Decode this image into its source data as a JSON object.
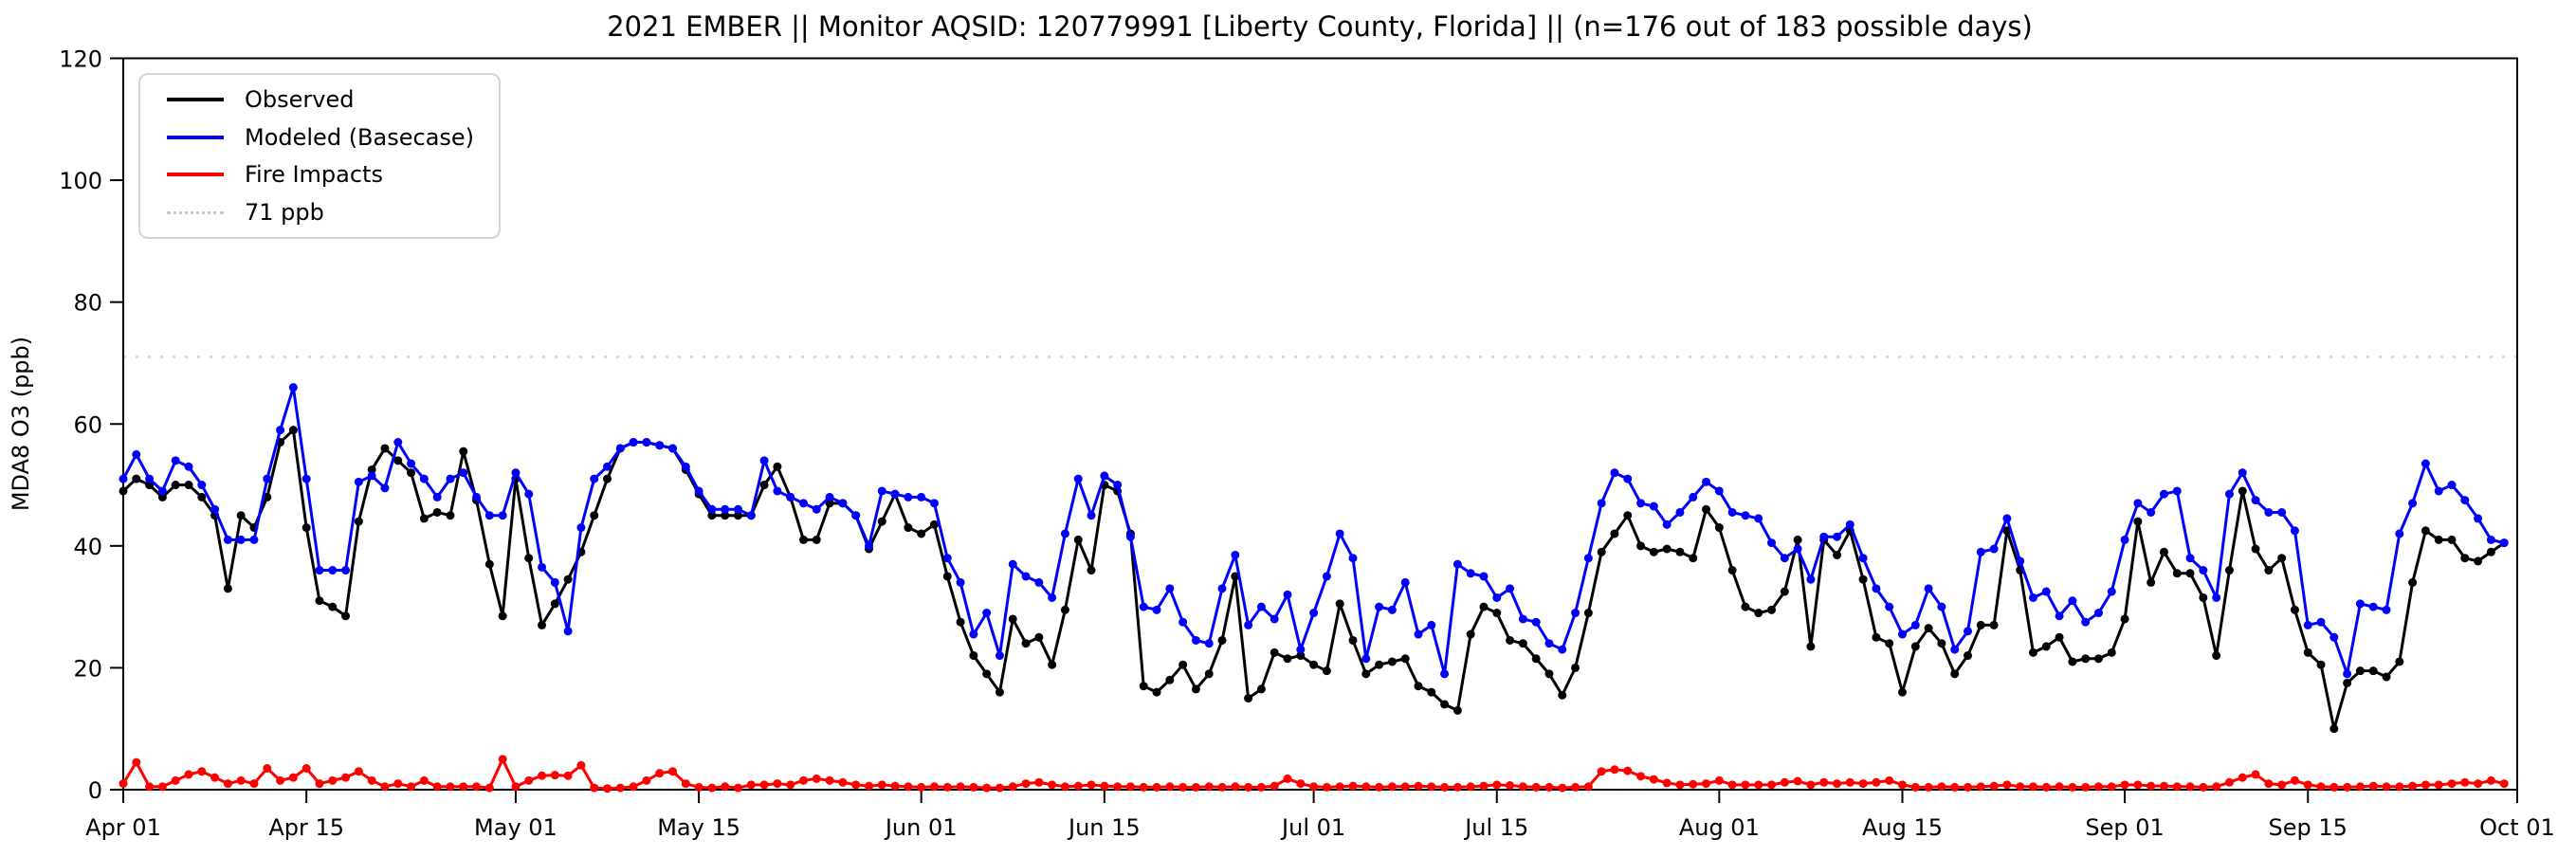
{
  "title": "2021 EMBER || Monitor AQSID: 120779991 [Liberty County, Florida] || (n=176 out of 183 possible days)",
  "legend": {
    "items": [
      {
        "label": "Observed",
        "color": "#000000",
        "style": "solid"
      },
      {
        "label": "Modeled (Basecase)",
        "color": "#0000ff",
        "style": "solid"
      },
      {
        "label": "Fire Impacts",
        "color": "#ff0000",
        "style": "solid"
      },
      {
        "label": "71 ppb",
        "color": "#d9d9d9",
        "style": "dotted"
      }
    ]
  },
  "chart_data": {
    "type": "line",
    "title": "2021 EMBER || Monitor AQSID: 120779991 [Liberty County, Florida] || (n=176 out of 183 possible days)",
    "xlabel": "",
    "ylabel": "MDA8 O3 (ppb)",
    "ylim": [
      0,
      120
    ],
    "y_ticks": [
      0,
      20,
      40,
      60,
      80,
      100,
      120
    ],
    "x_start": "Apr 01",
    "x_end": "Oct 01",
    "n_days": 183,
    "x_tick_days": [
      0,
      14,
      30,
      44,
      61,
      75,
      91,
      105,
      122,
      136,
      153,
      167,
      183
    ],
    "x_tick_labels": [
      "Apr 01",
      "Apr 15",
      "May 01",
      "May 15",
      "Jun 01",
      "Jun 15",
      "Jul 01",
      "Jul 15",
      "Aug 01",
      "Aug 15",
      "Sep 01",
      "Sep 15",
      "Oct 01"
    ],
    "grid": false,
    "legend_position": "upper left",
    "threshold": {
      "value": 71,
      "label": "71 ppb",
      "color": "#d9d9d9"
    },
    "series": [
      {
        "name": "Observed",
        "color": "#000000",
        "marker": "o",
        "values": [
          49,
          51,
          50,
          48,
          50,
          50,
          48,
          45,
          33,
          45,
          43,
          48,
          57,
          59,
          43,
          31,
          30,
          28.5,
          44,
          52.5,
          56,
          54,
          52,
          44.5,
          45.5,
          45,
          55.5,
          47.5,
          37,
          28.5,
          51,
          38,
          27,
          30.5,
          34.5,
          39,
          45,
          51,
          56,
          57,
          57,
          56.5,
          56,
          52.5,
          48.5,
          45,
          45,
          45,
          45,
          50,
          53,
          48,
          41,
          41,
          47,
          47,
          45,
          39.5,
          44,
          48.5,
          43,
          42,
          43.5,
          35,
          27.5,
          22,
          19,
          16,
          28,
          24,
          25,
          20.5,
          29.5,
          41,
          36,
          50,
          49,
          42,
          17,
          16,
          18,
          20.5,
          16.5,
          19,
          24.5,
          35,
          15,
          16.5,
          22.5,
          21.5,
          22,
          20.5,
          19.5,
          30.5,
          24.5,
          19,
          20.5,
          21,
          21.5,
          17,
          16,
          14,
          13,
          25.5,
          30,
          29,
          24.5,
          24,
          21.5,
          19,
          15.5,
          20,
          29,
          39,
          42,
          45,
          40,
          39,
          39.5,
          39,
          38,
          46,
          43,
          36,
          30,
          29,
          29.5,
          32.5,
          41,
          23.5,
          41,
          38.5,
          42.5,
          34.5,
          25,
          24,
          16,
          23.5,
          26.5,
          24,
          19,
          22,
          27,
          27,
          42.5,
          36,
          22.5,
          23.5,
          25,
          21,
          21.5,
          21.5,
          22.5,
          28,
          44,
          34,
          39,
          35.5,
          35.5,
          31.5,
          22,
          36,
          49,
          39.5,
          36,
          38,
          29.5,
          22.5,
          20.5,
          10,
          17.5,
          19.5,
          19.5,
          18.5,
          21,
          34,
          42.5,
          41,
          41,
          38,
          37.5,
          39,
          40.5
        ]
      },
      {
        "name": "Modeled (Basecase)",
        "color": "#0000ff",
        "marker": "o",
        "values": [
          51,
          55,
          51,
          49,
          54,
          53,
          50,
          46,
          41,
          41,
          41,
          51,
          59,
          66,
          51,
          36,
          36,
          36,
          50.5,
          51.5,
          49.5,
          57,
          53.5,
          51,
          48,
          51,
          52,
          48,
          45,
          45,
          52,
          48.5,
          36.5,
          34,
          26,
          43,
          51,
          53,
          56,
          57,
          57,
          56.5,
          56,
          53,
          49,
          46,
          46,
          46,
          45,
          54,
          49,
          48,
          47,
          46,
          48,
          47,
          45,
          40,
          49,
          48.5,
          48,
          48,
          47,
          38,
          34,
          25.5,
          29,
          22,
          37,
          35,
          34,
          31.5,
          42,
          51,
          45,
          51.5,
          50,
          41.5,
          30,
          29.5,
          33,
          27.5,
          24.5,
          24,
          33,
          38.5,
          27,
          30,
          28,
          32,
          23,
          29,
          35,
          42,
          38,
          21.5,
          30,
          29.5,
          34,
          25.5,
          27,
          19,
          37,
          35.5,
          35,
          31.5,
          33,
          28,
          27.5,
          24,
          23,
          29,
          38,
          47,
          52,
          51,
          47,
          46.5,
          43.5,
          45.5,
          48,
          50.5,
          49,
          45.5,
          45,
          44.5,
          40.5,
          38,
          39.5,
          34.5,
          41.5,
          41.5,
          43.5,
          38,
          33,
          30,
          25.5,
          27,
          33,
          30,
          23,
          26,
          39,
          39.5,
          44.5,
          37.5,
          31.5,
          32.5,
          28.5,
          31,
          27.5,
          29,
          32.5,
          41,
          47,
          45.5,
          48.5,
          49,
          38,
          36,
          31.5,
          48.5,
          52,
          47.5,
          45.5,
          45.5,
          42.5,
          27,
          27.5,
          25,
          19,
          30.5,
          30,
          29.5,
          42,
          47,
          53.5,
          49,
          50,
          47.5,
          44.5,
          41,
          40.5
        ]
      },
      {
        "name": "Fire Impacts",
        "color": "#ff0000",
        "marker": "o",
        "values": [
          1,
          4.5,
          0.5,
          0.5,
          1.5,
          2.5,
          3,
          2,
          1,
          1.5,
          1,
          3.5,
          1.5,
          2,
          3.5,
          1,
          1.5,
          2,
          3,
          1.5,
          0.5,
          1,
          0.5,
          1.5,
          0.5,
          0.5,
          0.5,
          0.5,
          0.3,
          5,
          0.5,
          1.5,
          2.3,
          2.4,
          2.3,
          4,
          0.3,
          0.2,
          0.3,
          0.5,
          1.5,
          2.7,
          3,
          1,
          0.4,
          0.3,
          0.5,
          0.3,
          0.8,
          0.8,
          1,
          0.8,
          1.5,
          1.8,
          1.5,
          1.2,
          0.8,
          0.6,
          0.8,
          0.6,
          0.5,
          0.4,
          0.5,
          0.4,
          0.5,
          0.4,
          0.3,
          0.3,
          0.5,
          1,
          1.2,
          0.8,
          0.5,
          0.6,
          0.8,
          0.6,
          0.5,
          0.5,
          0.4,
          0.4,
          0.5,
          0.4,
          0.4,
          0.5,
          0.4,
          0.5,
          0.4,
          0.4,
          0.6,
          1.8,
          1,
          0.5,
          0.4,
          0.5,
          0.6,
          0.5,
          0.4,
          0.5,
          0.5,
          0.6,
          0.5,
          0.4,
          0.4,
          0.5,
          0.6,
          0.8,
          0.7,
          0.5,
          0.4,
          0.4,
          0.3,
          0.4,
          0.5,
          3,
          3.3,
          3.1,
          2.2,
          1.7,
          1.1,
          0.8,
          0.9,
          1,
          1.5,
          0.8,
          0.8,
          0.8,
          0.8,
          1.2,
          1.4,
          0.8,
          1.2,
          1,
          1.2,
          1,
          1.2,
          1.5,
          0.8,
          0.4,
          0.4,
          0.5,
          0.4,
          0.4,
          0.5,
          0.6,
          0.8,
          0.5,
          0.5,
          0.4,
          0.5,
          0.4,
          0.4,
          0.5,
          0.5,
          0.8,
          0.8,
          0.6,
          0.6,
          0.5,
          0.5,
          0.4,
          0.5,
          1.2,
          2,
          2.5,
          1,
          0.8,
          1.5,
          0.8,
          0.5,
          0.4,
          0.4,
          0.5,
          0.6,
          0.5,
          0.5,
          0.6,
          0.8,
          0.8,
          1,
          1.2,
          1,
          1.5,
          1
        ]
      }
    ],
    "layout": {
      "plot_left": 130,
      "plot_right": 2655,
      "plot_top": 61.5,
      "plot_bottom": 833,
      "marker_radius": 4.5,
      "line_width": 3,
      "spine_width": 2,
      "tick_length": 14
    }
  }
}
